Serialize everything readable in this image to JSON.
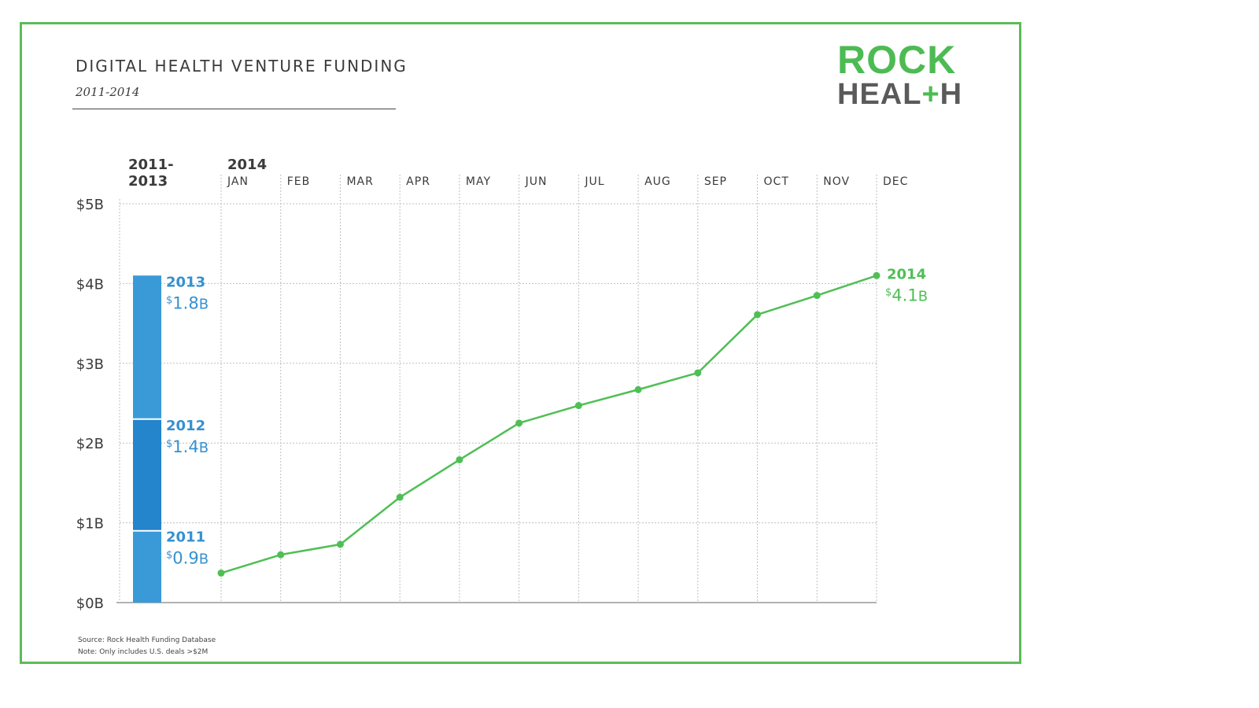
{
  "header": {
    "title": "DIGITAL HEALTH VENTURE FUNDING",
    "subtitle": "2011-2014"
  },
  "logo": {
    "line1": "ROCK",
    "line2_a": "HEAL",
    "line2_plus": "+",
    "line2_b": "H"
  },
  "colors": {
    "frame": "#5dbb5a",
    "green": "#4fbf55",
    "bar_light": "#3a9ad8",
    "bar_dark": "#2484cc",
    "label_blue": "#3591d0",
    "grid": "#bfbfbf",
    "text": "#3b3b3b"
  },
  "notes": {
    "source": "Source: Rock Health Funding Database",
    "note": "Note: Only includes U.S. deals >$2M"
  },
  "chart_data": [
    {
      "type": "bar",
      "stacked": true,
      "column_header": [
        "2011-",
        "2013"
      ],
      "unit_prefix": "$",
      "unit_suffix": "B",
      "series": [
        {
          "name": "2011",
          "values": [
            0.9
          ],
          "value_label": "0.9"
        },
        {
          "name": "2012",
          "values": [
            1.4
          ],
          "value_label": "1.4"
        },
        {
          "name": "2013",
          "values": [
            1.8
          ],
          "value_label": "1.8"
        }
      ],
      "ylim": [
        0,
        5
      ]
    },
    {
      "type": "line",
      "year_label": "2014",
      "categories": [
        "JAN",
        "FEB",
        "MAR",
        "APR",
        "MAY",
        "JUN",
        "JUL",
        "AUG",
        "SEP",
        "OCT",
        "NOV",
        "DEC"
      ],
      "series": [
        {
          "name": "2014",
          "values": [
            0.37,
            0.6,
            0.73,
            1.32,
            1.79,
            2.25,
            2.47,
            2.67,
            2.88,
            3.61,
            3.85,
            4.1
          ],
          "end_label": "4.1"
        }
      ],
      "yticks": [
        "$0B",
        "$1B",
        "$2B",
        "$3B",
        "$4B",
        "$5B"
      ],
      "ylim": [
        0,
        5
      ],
      "grid": true
    }
  ]
}
